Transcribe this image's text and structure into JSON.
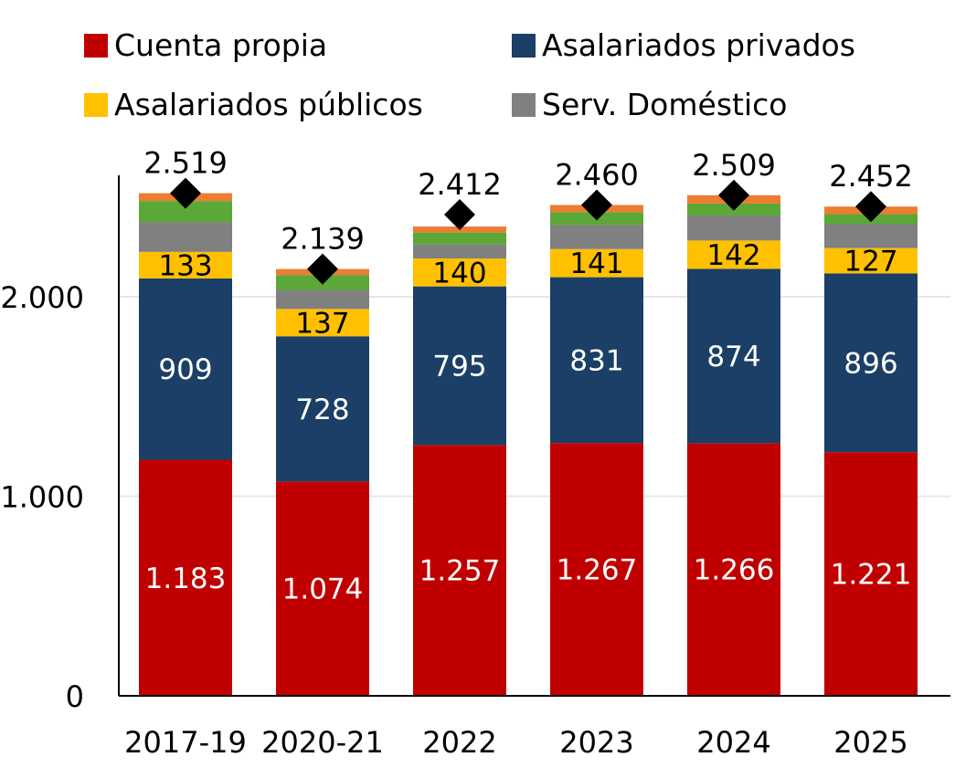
{
  "legend": {
    "items": [
      {
        "label": "Cuenta propia",
        "color": "#C00000"
      },
      {
        "label": "Asalariados privados",
        "color": "#1B3F66"
      },
      {
        "label": "Asalariados públicos",
        "color": "#FFC000"
      },
      {
        "label": "Serv. Doméstico",
        "color": "#808080"
      }
    ]
  },
  "chart_data": {
    "type": "bar",
    "stacked": true,
    "categories": [
      "2017-19",
      "2020-21",
      "2022",
      "2023",
      "2024",
      "2025"
    ],
    "ylim": [
      0,
      2600
    ],
    "yticks": [
      0,
      1000,
      2000
    ],
    "ytick_labels": [
      "0",
      "1.000",
      "2.000"
    ],
    "grid": true,
    "legend_position": "top",
    "series": [
      {
        "name": "Cuenta propia",
        "color": "#C00000",
        "label_color": "#ffffff",
        "values": [
          1183,
          1074,
          1257,
          1267,
          1266,
          1221
        ],
        "labels": [
          "1.183",
          "1.074",
          "1.257",
          "1.267",
          "1.266",
          "1.221"
        ]
      },
      {
        "name": "Asalariados privados",
        "color": "#1B3F66",
        "label_color": "#ffffff",
        "values": [
          909,
          728,
          795,
          831,
          874,
          896
        ],
        "labels": [
          "909",
          "728",
          "795",
          "831",
          "874",
          "896"
        ]
      },
      {
        "name": "Asalariados públicos",
        "color": "#FFC000",
        "label_color": "#000000",
        "values": [
          133,
          137,
          140,
          141,
          142,
          127
        ],
        "labels": [
          "133",
          "137",
          "140",
          "141",
          "142",
          "127"
        ]
      },
      {
        "name": "Serv. Doméstico",
        "color": "#808080",
        "values": [
          150,
          95,
          70,
          120,
          125,
          120
        ]
      },
      {
        "color": "#5BA738",
        "values": [
          105,
          75,
          60,
          65,
          60,
          50
        ]
      },
      {
        "color": "#ED7D31",
        "values": [
          39,
          30,
          30,
          36,
          42,
          38
        ]
      }
    ],
    "totals": {
      "color": "#000000",
      "values": [
        2519,
        2139,
        2412,
        2460,
        2509,
        2452
      ],
      "labels": [
        "2.519",
        "2.139",
        "2.412",
        "2.460",
        "2.509",
        "2.452"
      ]
    }
  }
}
